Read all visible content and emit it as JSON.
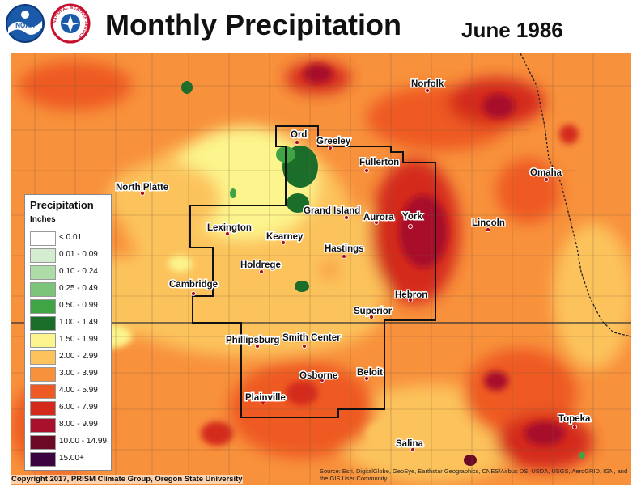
{
  "title": "Monthly Precipitation",
  "date": "June 1986",
  "logos": [
    {
      "name": "noaa-logo",
      "text": "NOAA"
    },
    {
      "name": "nws-logo",
      "text": "NATIONAL WEATHER SERVICE"
    }
  ],
  "legend": {
    "title": "Precipitation",
    "subtitle": "Inches",
    "items": [
      {
        "label": "< 0.01",
        "color": "#ffffff"
      },
      {
        "label": "0.01 - 0.09",
        "color": "#d4ecd0"
      },
      {
        "label": "0.10 - 0.24",
        "color": "#aedca8"
      },
      {
        "label": "0.25 - 0.49",
        "color": "#7cc47a"
      },
      {
        "label": "0.50 - 0.99",
        "color": "#3ea444"
      },
      {
        "label": "1.00 - 1.49",
        "color": "#1a6e2a"
      },
      {
        "label": "1.50 - 1.99",
        "color": "#fcf48c"
      },
      {
        "label": "2.00 - 2.99",
        "color": "#fcc35c"
      },
      {
        "label": "3.00 - 3.99",
        "color": "#f8913c"
      },
      {
        "label": "4.00 - 5.99",
        "color": "#ee5a24"
      },
      {
        "label": "6.00 - 7.99",
        "color": "#d42a1c"
      },
      {
        "label": "8.00 - 9.99",
        "color": "#a8102c"
      },
      {
        "label": "10.00 - 14.99",
        "color": "#6c0a26"
      },
      {
        "label": "15.00+",
        "color": "#3a0440"
      }
    ]
  },
  "cities": [
    {
      "name": "Ord"
    },
    {
      "name": "Greeley"
    },
    {
      "name": "Fullerton"
    },
    {
      "name": "Norfolk"
    },
    {
      "name": "Omaha"
    },
    {
      "name": "North Platte"
    },
    {
      "name": "Grand Island"
    },
    {
      "name": "Aurora"
    },
    {
      "name": "York"
    },
    {
      "name": "Lincoln"
    },
    {
      "name": "Lexington"
    },
    {
      "name": "Kearney"
    },
    {
      "name": "Hastings"
    },
    {
      "name": "Holdrege"
    },
    {
      "name": "Cambridge"
    },
    {
      "name": "Hebron"
    },
    {
      "name": "Superior"
    },
    {
      "name": "Phillipsburg"
    },
    {
      "name": "Smith Center"
    },
    {
      "name": "Osborne"
    },
    {
      "name": "Beloit"
    },
    {
      "name": "Plainville"
    },
    {
      "name": "Salina"
    },
    {
      "name": "Topeka"
    }
  ],
  "copyright": "Copyright 2017, PRISM Climate Group, Oregon State University",
  "source": "Source: Esri, DigitalGlobe, GeoEye, Earthstar Geographics, CNES/Airbus DS, USDA, USGS, AeroGRID, IGN, and the GIS User Community"
}
